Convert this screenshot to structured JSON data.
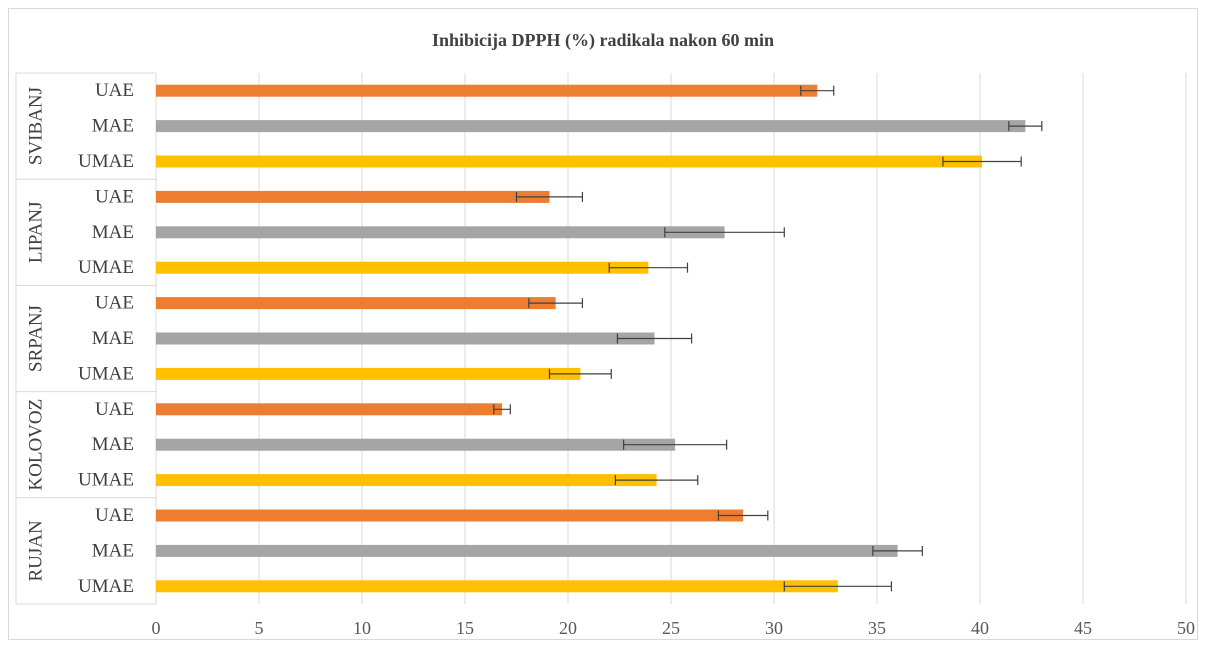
{
  "chart_data": {
    "type": "bar",
    "orientation": "horizontal",
    "title": "Inhibicija DPPH (%) radikala nakon 60 min",
    "xlim": [
      0,
      50
    ],
    "xticks": [
      0,
      5,
      10,
      15,
      20,
      25,
      30,
      35,
      40,
      45,
      50
    ],
    "grid": true,
    "legend": "none",
    "colors": {
      "UAE": "#ed7d31",
      "MAE": "#a5a5a5",
      "UMAE": "#ffc000"
    },
    "groups": [
      {
        "name": "SVIBANJ",
        "bars": [
          {
            "category": "UAE",
            "value": 32.1,
            "error": 0.8
          },
          {
            "category": "MAE",
            "value": 42.2,
            "error": 0.8
          },
          {
            "category": "UMAE",
            "value": 40.1,
            "error": 1.9
          }
        ]
      },
      {
        "name": "LIPANJ",
        "bars": [
          {
            "category": "UAE",
            "value": 19.1,
            "error": 1.6
          },
          {
            "category": "MAE",
            "value": 27.6,
            "error": 2.9
          },
          {
            "category": "UMAE",
            "value": 23.9,
            "error": 1.9
          }
        ]
      },
      {
        "name": "SRPANJ",
        "bars": [
          {
            "category": "UAE",
            "value": 19.4,
            "error": 1.3
          },
          {
            "category": "MAE",
            "value": 24.2,
            "error": 1.8
          },
          {
            "category": "UMAE",
            "value": 20.6,
            "error": 1.5
          }
        ]
      },
      {
        "name": "KOLOVOZ",
        "bars": [
          {
            "category": "UAE",
            "value": 16.8,
            "error": 0.4
          },
          {
            "category": "MAE",
            "value": 25.2,
            "error": 2.5
          },
          {
            "category": "UMAE",
            "value": 24.3,
            "error": 2.0
          }
        ]
      },
      {
        "name": "RUJAN",
        "bars": [
          {
            "category": "UAE",
            "value": 28.5,
            "error": 1.2
          },
          {
            "category": "MAE",
            "value": 36.0,
            "error": 1.2
          },
          {
            "category": "UMAE",
            "value": 33.1,
            "error": 2.6
          }
        ]
      }
    ]
  }
}
